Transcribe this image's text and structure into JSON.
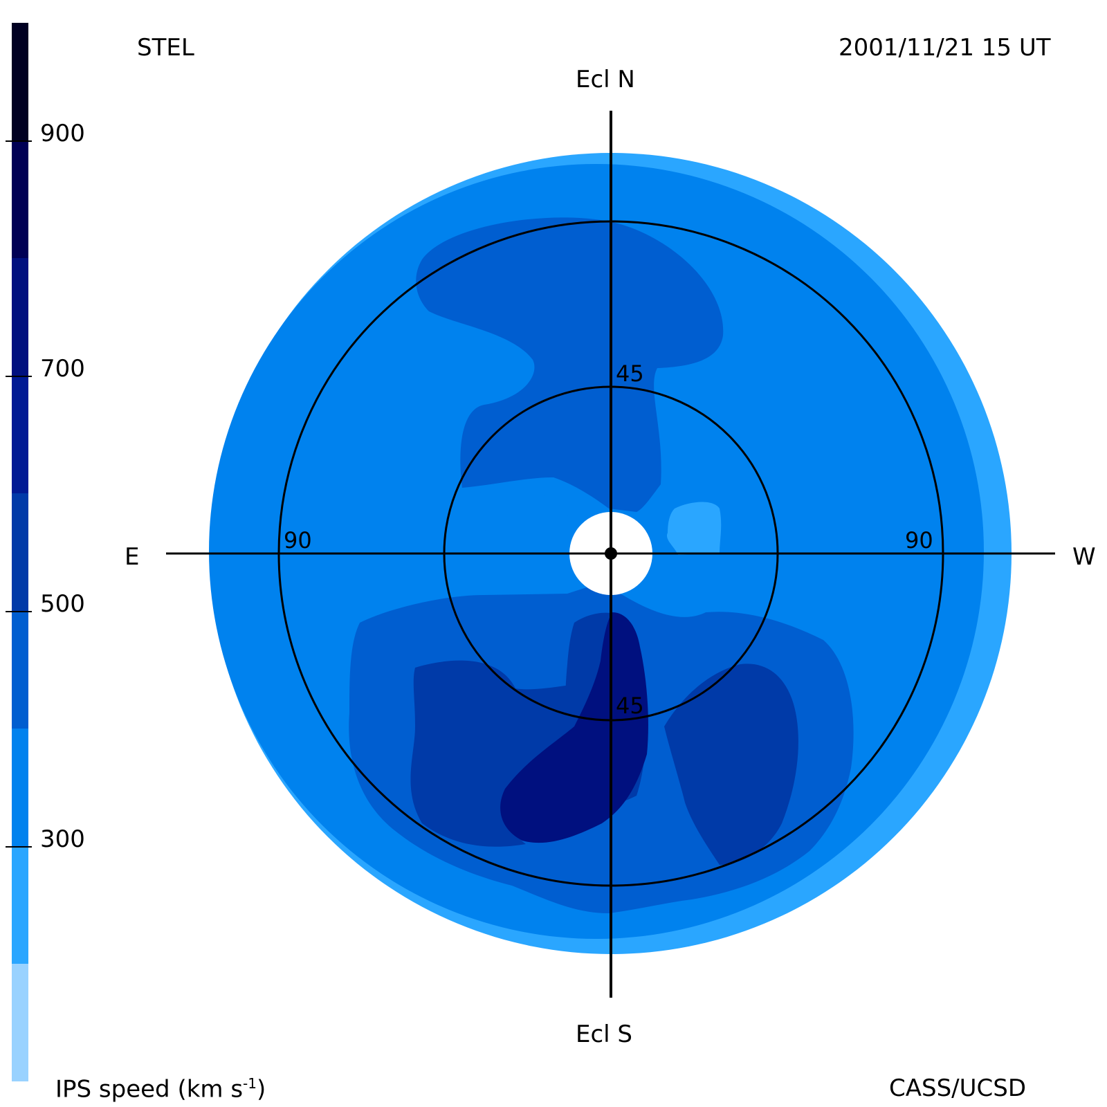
{
  "header": {
    "observatory": "STEL",
    "datetime": "2001/11/21 15 UT"
  },
  "footer": {
    "credit": "CASS/UCSD",
    "colorbar_label": "IPS speed (km s",
    "colorbar_label_sup": "-1",
    "colorbar_label_end": ")"
  },
  "compass": {
    "north": "Ecl N",
    "south": "Ecl S",
    "east": "E",
    "west": "W"
  },
  "rings": {
    "inner_north_label": "45",
    "inner_south_label": "45",
    "outer_east_label": "90",
    "outer_west_label": "90"
  },
  "colorbar": {
    "ticks": [
      "900",
      "700",
      "500",
      "300"
    ],
    "colors": [
      "#000022",
      "#000055",
      "#00107f",
      "#003aa8",
      "#005ed0",
      "#0082ee",
      "#2aa6ff",
      "#99d2ff"
    ]
  },
  "map_colors": {
    "band_light": "#2aa6ff",
    "band_base": "#0082ee",
    "band_mid": "#005ed0",
    "band_dark": "#003aa8",
    "band_darkest": "#00107f"
  }
}
